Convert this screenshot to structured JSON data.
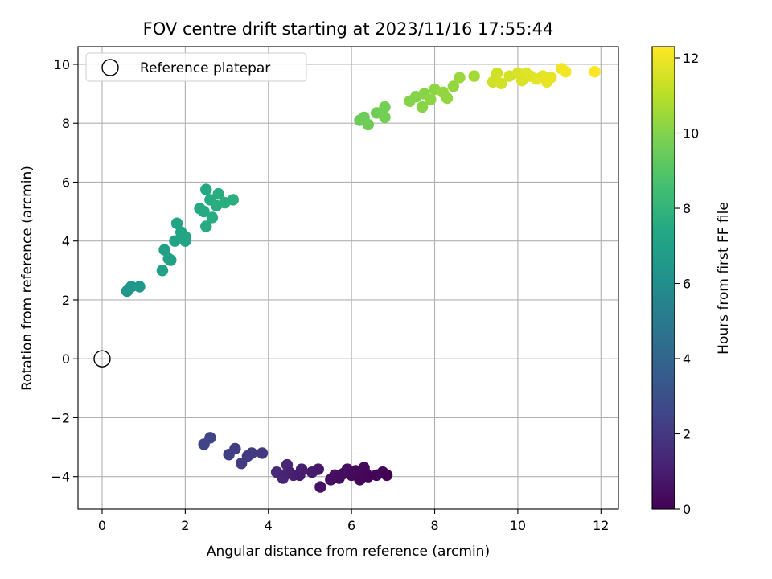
{
  "chart_data": {
    "type": "scatter",
    "title": "FOV centre drift starting at 2023/11/16 17:55:44",
    "xlabel": "Angular distance from reference (arcmin)",
    "ylabel": "Rotation from reference (arcmin)",
    "xlim": [
      -0.58,
      12.42
    ],
    "ylim": [
      -5.1,
      10.6
    ],
    "xticks": [
      0,
      2,
      4,
      6,
      8,
      10,
      12
    ],
    "xtick_labels": [
      "0",
      "2",
      "4",
      "6",
      "8",
      "10",
      "12"
    ],
    "yticks": [
      -4,
      -2,
      0,
      2,
      4,
      6,
      8,
      10
    ],
    "ytick_labels": [
      "−4",
      "−2",
      "0",
      "2",
      "4",
      "6",
      "8",
      "10"
    ],
    "grid": true,
    "legend": {
      "position": "top-left",
      "entries": [
        "Reference platepar"
      ]
    },
    "reference_point": {
      "label": "Reference platepar",
      "x": 0,
      "y": 0,
      "marker": "open-circle"
    },
    "colorbar": {
      "label": "Hours from first FF file",
      "colormap": "viridis",
      "range": [
        0,
        12.3
      ],
      "ticks": [
        0,
        2,
        4,
        6,
        8,
        10,
        12
      ],
      "tick_labels": [
        "0",
        "2",
        "4",
        "6",
        "8",
        "10",
        "12"
      ]
    },
    "points": [
      [
        2.45,
        -2.9,
        2.5
      ],
      [
        2.6,
        -2.68,
        2.5
      ],
      [
        3.05,
        -3.25,
        2.3
      ],
      [
        3.2,
        -3.05,
        2.2
      ],
      [
        3.35,
        -3.55,
        2.2
      ],
      [
        3.5,
        -3.3,
        2.1
      ],
      [
        3.6,
        -3.2,
        2.1
      ],
      [
        3.85,
        -3.2,
        2.0
      ],
      [
        4.2,
        -3.85,
        1.5
      ],
      [
        4.35,
        -3.95,
        1.4
      ],
      [
        4.35,
        -4.05,
        1.3
      ],
      [
        4.45,
        -3.6,
        1.4
      ],
      [
        4.5,
        -3.85,
        1.2
      ],
      [
        4.6,
        -3.95,
        1.1
      ],
      [
        4.75,
        -3.95,
        1.0
      ],
      [
        4.8,
        -3.75,
        1.0
      ],
      [
        5.05,
        -3.85,
        0.9
      ],
      [
        5.2,
        -3.75,
        0.8
      ],
      [
        5.25,
        -4.35,
        0.6
      ],
      [
        5.5,
        -4.1,
        0.5
      ],
      [
        5.6,
        -3.95,
        0.5
      ],
      [
        5.7,
        -4.05,
        0.4
      ],
      [
        5.8,
        -3.9,
        0.4
      ],
      [
        5.9,
        -3.75,
        0.5
      ],
      [
        6.0,
        -3.95,
        0.3
      ],
      [
        6.1,
        -3.8,
        0.3
      ],
      [
        6.2,
        -4.1,
        0.2
      ],
      [
        6.3,
        -3.7,
        0.3
      ],
      [
        6.35,
        -3.9,
        0.2
      ],
      [
        6.4,
        -4.0,
        0.1
      ],
      [
        6.6,
        -3.95,
        0.1
      ],
      [
        6.75,
        -3.85,
        0.1
      ],
      [
        6.85,
        -3.95,
        0.0
      ],
      [
        0.6,
        2.3,
        6.4
      ],
      [
        0.7,
        2.45,
        6.4
      ],
      [
        0.9,
        2.45,
        6.5
      ],
      [
        1.45,
        3.0,
        6.9
      ],
      [
        1.5,
        3.7,
        6.9
      ],
      [
        1.6,
        3.4,
        6.9
      ],
      [
        1.65,
        3.35,
        7.0
      ],
      [
        1.75,
        4.0,
        7.1
      ],
      [
        1.8,
        4.6,
        7.1
      ],
      [
        1.9,
        4.3,
        7.2
      ],
      [
        2.0,
        4.15,
        7.2
      ],
      [
        2.0,
        4.0,
        7.2
      ],
      [
        2.35,
        5.1,
        7.5
      ],
      [
        2.45,
        5.0,
        7.5
      ],
      [
        2.5,
        4.5,
        7.5
      ],
      [
        2.5,
        5.75,
        7.4
      ],
      [
        2.6,
        5.4,
        7.5
      ],
      [
        2.65,
        4.8,
        7.6
      ],
      [
        2.75,
        5.2,
        7.6
      ],
      [
        2.8,
        5.6,
        7.6
      ],
      [
        2.95,
        5.3,
        7.7
      ],
      [
        3.15,
        5.4,
        7.7
      ],
      [
        6.2,
        8.1,
        9.5
      ],
      [
        6.3,
        8.2,
        9.5
      ],
      [
        6.4,
        7.95,
        9.6
      ],
      [
        6.6,
        8.35,
        9.6
      ],
      [
        6.8,
        8.55,
        9.7
      ],
      [
        6.8,
        8.2,
        9.7
      ],
      [
        7.4,
        8.75,
        10.0
      ],
      [
        7.55,
        8.9,
        10.0
      ],
      [
        7.7,
        8.55,
        10.1
      ],
      [
        7.75,
        9.0,
        10.1
      ],
      [
        7.9,
        8.8,
        10.2
      ],
      [
        8.0,
        9.15,
        10.2
      ],
      [
        8.2,
        9.05,
        10.3
      ],
      [
        8.3,
        8.85,
        10.3
      ],
      [
        8.45,
        9.25,
        10.3
      ],
      [
        8.6,
        9.55,
        10.4
      ],
      [
        8.95,
        9.6,
        10.6
      ],
      [
        9.4,
        9.4,
        11.4
      ],
      [
        9.5,
        9.7,
        11.4
      ],
      [
        9.6,
        9.35,
        11.5
      ],
      [
        9.8,
        9.6,
        11.5
      ],
      [
        10.0,
        9.7,
        11.6
      ],
      [
        10.1,
        9.45,
        11.6
      ],
      [
        10.2,
        9.7,
        11.7
      ],
      [
        10.3,
        9.6,
        11.7
      ],
      [
        10.45,
        9.5,
        11.8
      ],
      [
        10.6,
        9.6,
        11.8
      ],
      [
        10.7,
        9.4,
        11.9
      ],
      [
        10.8,
        9.55,
        11.9
      ],
      [
        11.05,
        9.85,
        12.1
      ],
      [
        11.15,
        9.75,
        12.1
      ],
      [
        11.85,
        9.75,
        12.3
      ]
    ]
  }
}
